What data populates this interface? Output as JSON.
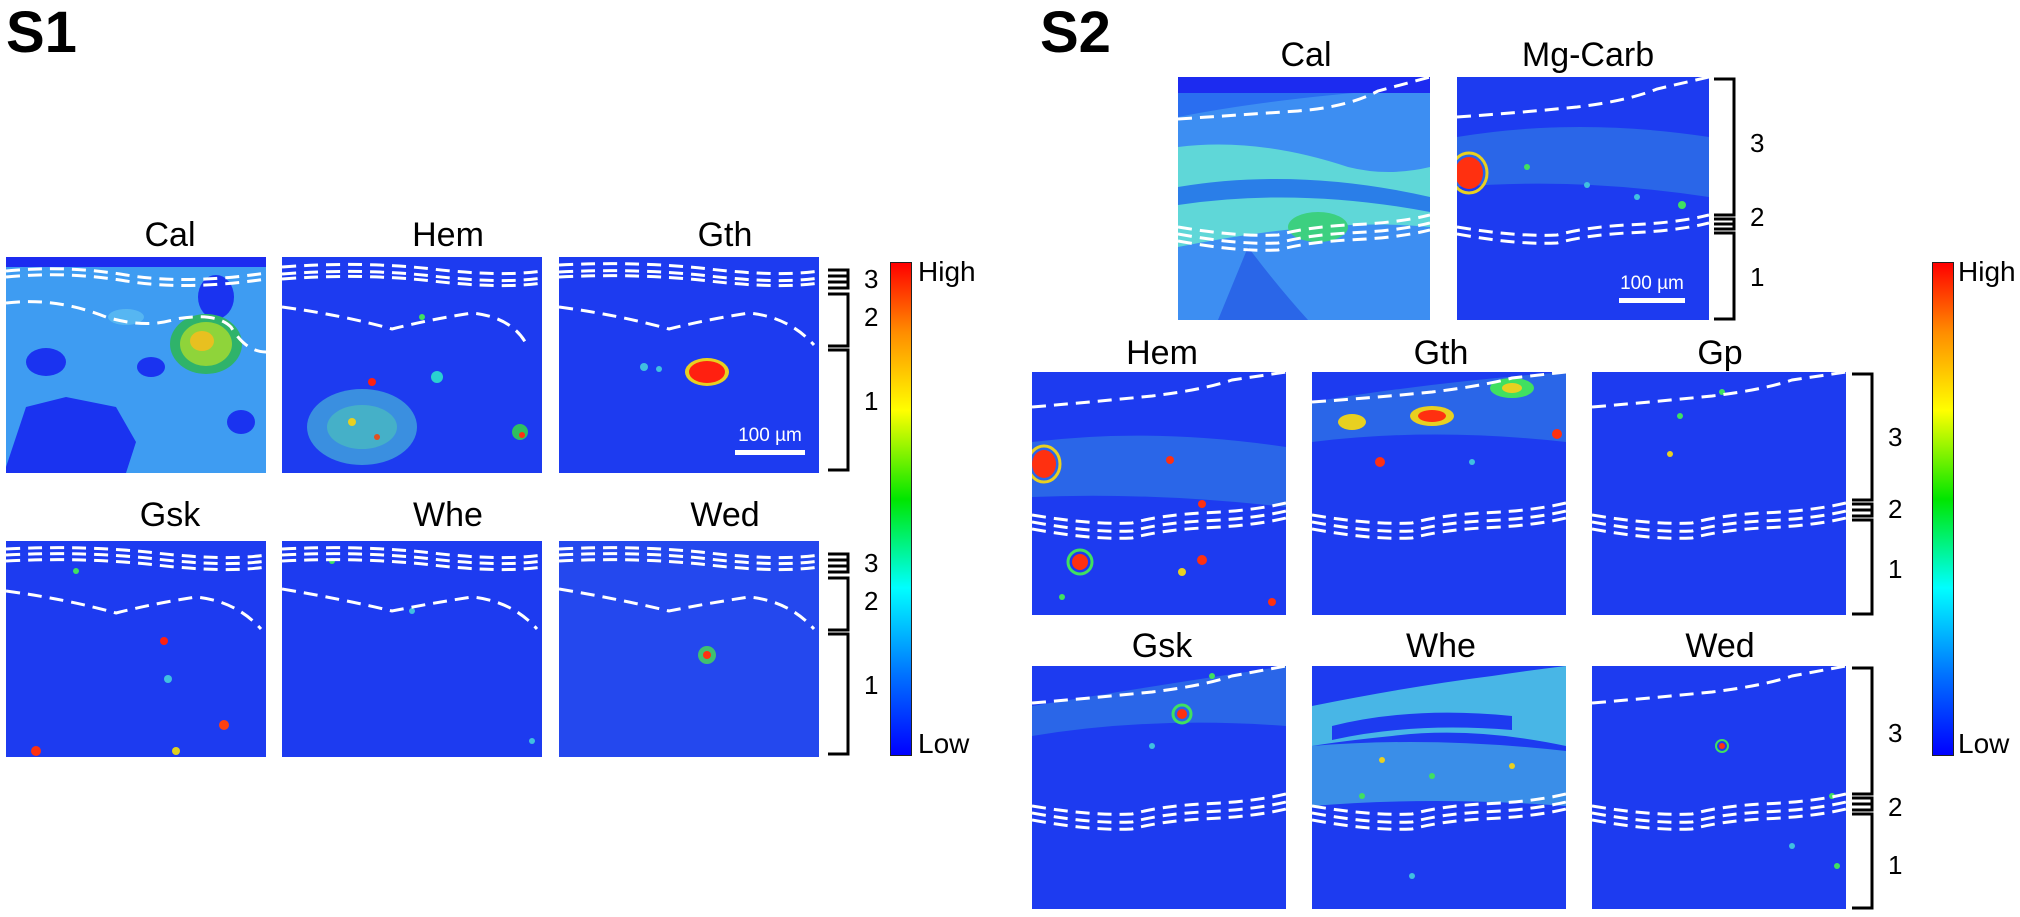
{
  "sections": {
    "s1": {
      "title": "S1",
      "panels": [
        "Cal",
        "Hem",
        "Gth",
        "Gsk",
        "Whe",
        "Wed"
      ],
      "scale_bar": "100 µm",
      "zone_labels": [
        "3",
        "2",
        "1"
      ]
    },
    "s2": {
      "title": "S2",
      "panels": [
        "Cal",
        "Mg-Carb",
        "Hem",
        "Gth",
        "Gp",
        "Gsk",
        "Whe",
        "Wed"
      ],
      "scale_bar": "100 µm",
      "zone_labels": [
        "3",
        "2",
        "1"
      ]
    }
  },
  "colorbar": {
    "high": "High",
    "low": "Low",
    "colors": [
      "#ff0000",
      "#ffff00",
      "#00e600",
      "#00ffff",
      "#0000ff"
    ]
  }
}
